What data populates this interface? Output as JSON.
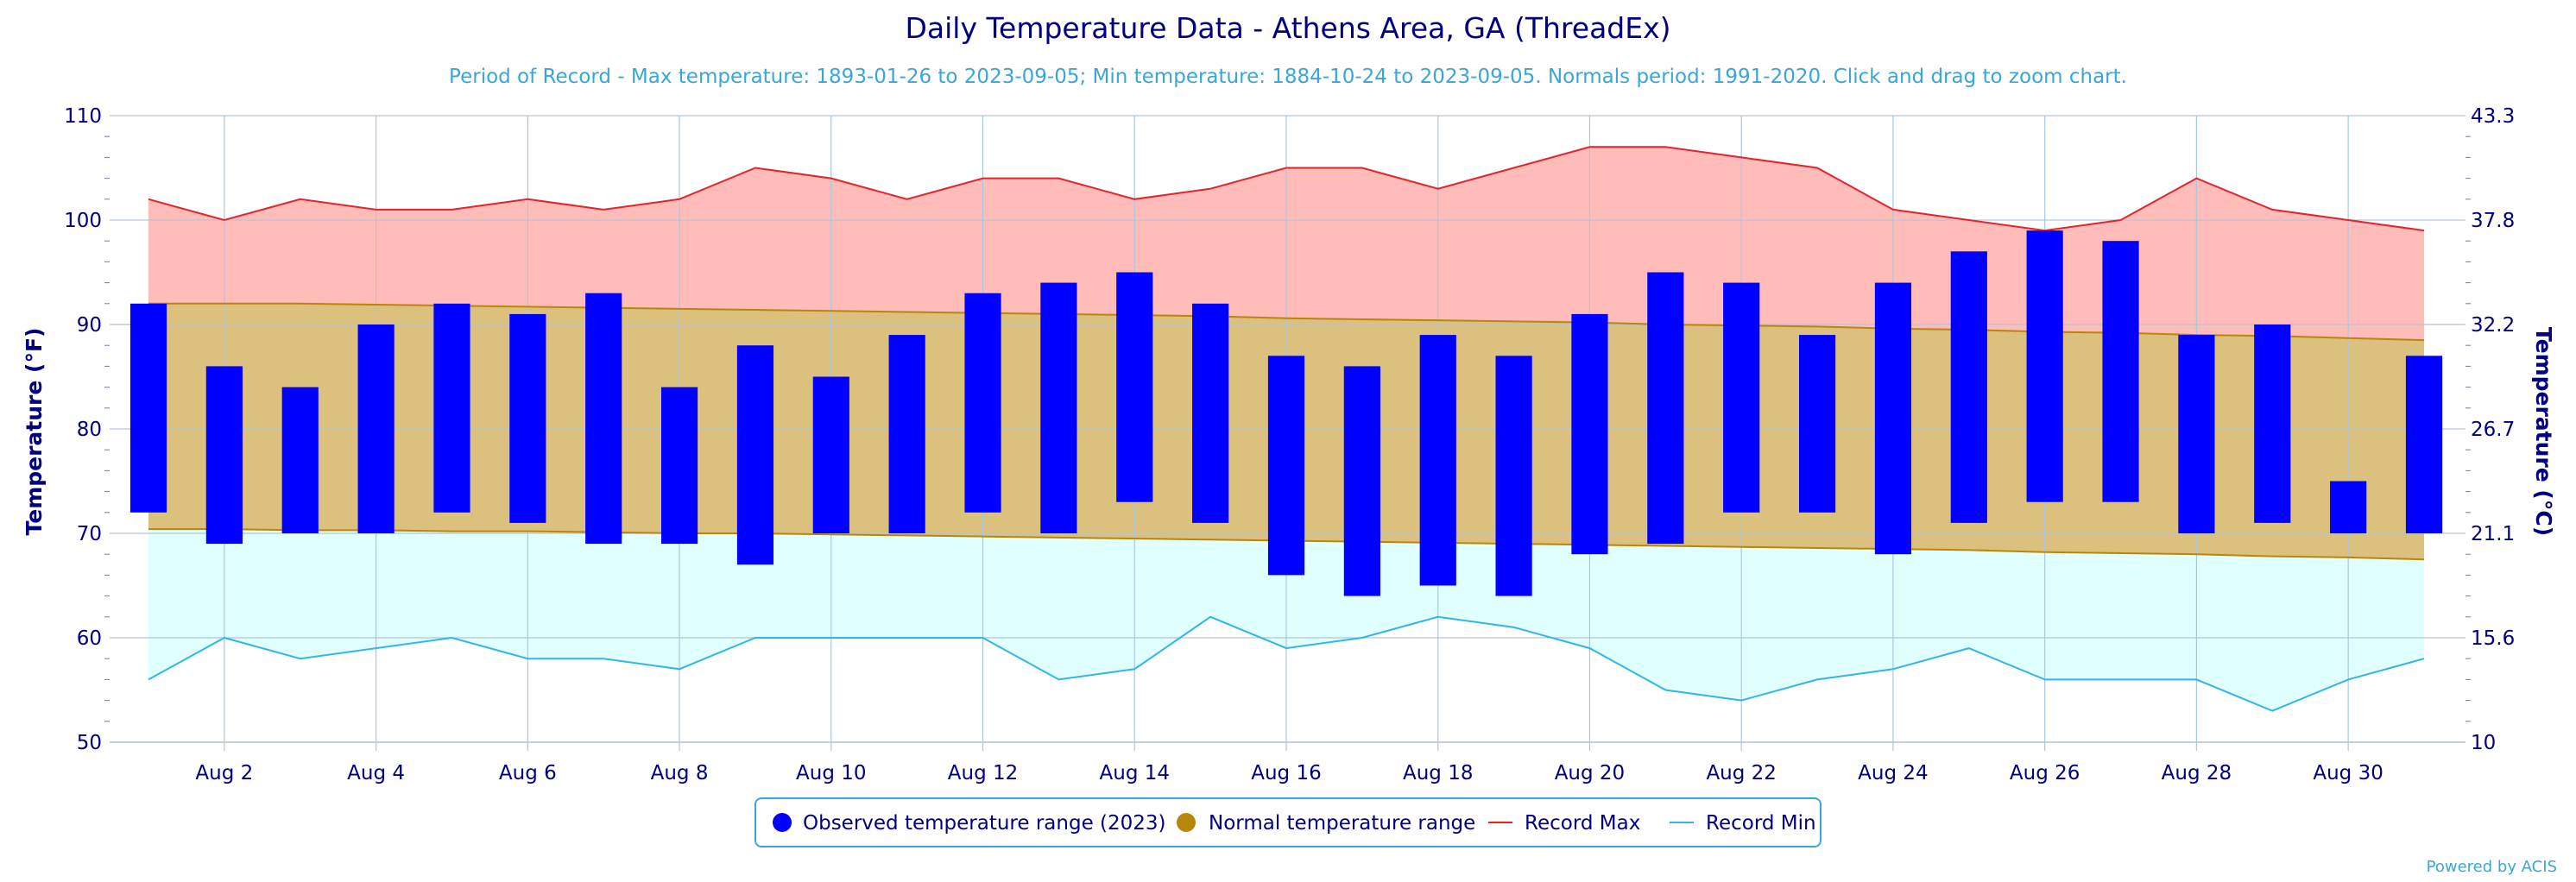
{
  "chart_data": {
    "type": "bar",
    "title": "Daily Temperature Data - Athens Area, GA (ThreadEx)",
    "subtitle": "Period of Record - Max temperature: 1893-01-26 to 2023-09-05; Min temperature: 1884-10-24 to 2023-09-05. Normals period: 1991-2020. Click and drag to zoom chart.",
    "ylabel": "Temperature (°F)",
    "ylabel_right": "Temperature (°C)",
    "ylim": [
      50,
      110
    ],
    "yticks": [
      50,
      60,
      70,
      80,
      90,
      100,
      110
    ],
    "yticks_right": [
      "10",
      "15.6",
      "21.1",
      "26.7",
      "32.2",
      "37.8",
      "43.3"
    ],
    "x": [
      1,
      2,
      3,
      4,
      5,
      6,
      7,
      8,
      9,
      10,
      11,
      12,
      13,
      14,
      15,
      16,
      17,
      18,
      19,
      20,
      21,
      22,
      23,
      24,
      25,
      26,
      27,
      28,
      29,
      30,
      31
    ],
    "xtick_labels": [
      "Aug 2",
      "Aug 4",
      "Aug 6",
      "Aug 8",
      "Aug 10",
      "Aug 12",
      "Aug 14",
      "Aug 16",
      "Aug 18",
      "Aug 20",
      "Aug 22",
      "Aug 24",
      "Aug 26",
      "Aug 28",
      "Aug 30"
    ],
    "grid": true,
    "legend_position": "bottom",
    "series": [
      {
        "name": "Observed temperature range (2023)",
        "type": "range-bar",
        "color": "#0000ff",
        "high": [
          92,
          86,
          84,
          90,
          92,
          91,
          93,
          84,
          88,
          85,
          89,
          93,
          94,
          95,
          92,
          87,
          86,
          89,
          87,
          91,
          95,
          94,
          89,
          94,
          97,
          99,
          98,
          89,
          90,
          75,
          87
        ],
        "low": [
          72,
          69,
          70,
          70,
          72,
          71,
          69,
          69,
          67,
          70,
          70,
          72,
          70,
          73,
          71,
          66,
          64,
          65,
          64,
          68,
          69,
          72,
          72,
          68,
          71,
          73,
          73,
          70,
          71,
          70,
          70
        ]
      },
      {
        "name": "Normal temperature range",
        "type": "area-range",
        "color": "#b8860b",
        "fill": "#dbc07e",
        "high": [
          92,
          92,
          92,
          91.9,
          91.8,
          91.7,
          91.6,
          91.5,
          91.4,
          91.3,
          91.2,
          91.1,
          91,
          90.9,
          90.8,
          90.6,
          90.5,
          90.4,
          90.3,
          90.2,
          90,
          89.9,
          89.8,
          89.6,
          89.5,
          89.3,
          89.2,
          89,
          88.9,
          88.7,
          88.5
        ],
        "low": [
          70.4,
          70.4,
          70.3,
          70.3,
          70.2,
          70.2,
          70.1,
          70,
          70,
          69.9,
          69.8,
          69.7,
          69.6,
          69.5,
          69.4,
          69.3,
          69.2,
          69.1,
          69,
          68.9,
          68.8,
          68.7,
          68.6,
          68.5,
          68.4,
          68.2,
          68.1,
          68,
          67.8,
          67.7,
          67.5
        ]
      },
      {
        "name": "Record Max",
        "type": "line",
        "color": "#e8222a",
        "fill": "#ffbcb8",
        "values": [
          102,
          100,
          102,
          101,
          101,
          102,
          101,
          102,
          105,
          104,
          102,
          104,
          104,
          102,
          103,
          105,
          105,
          103,
          105,
          107,
          107,
          106,
          105,
          101,
          100,
          99,
          100,
          104,
          101,
          100,
          99
        ]
      },
      {
        "name": "Record Min",
        "type": "line",
        "color": "#33b5e5",
        "fill": "#e0ffff",
        "values": [
          56,
          60,
          58,
          59,
          60,
          58,
          58,
          57,
          60,
          60,
          60,
          60,
          56,
          57,
          62,
          59,
          60,
          62,
          61,
          59,
          55,
          54,
          56,
          57,
          59,
          56,
          56,
          56,
          53,
          56,
          58
        ]
      }
    ]
  },
  "credit": "Powered by ACIS"
}
